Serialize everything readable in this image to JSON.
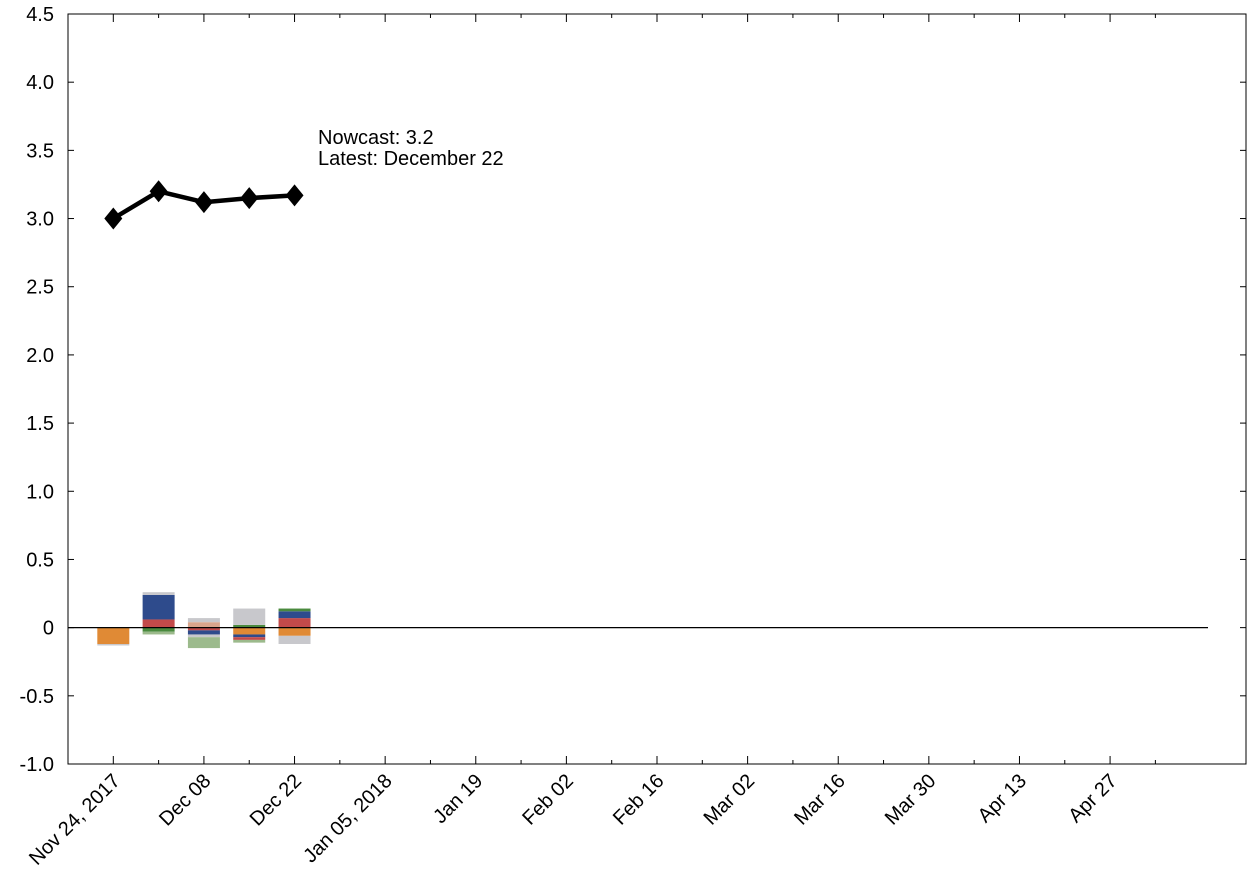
{
  "chart_data": {
    "type": "bar+line",
    "title": "",
    "xlabel": "",
    "ylabel": "",
    "ylim": [
      -1.0,
      4.5
    ],
    "y_ticks": [
      "-1.0",
      "-0.5",
      "0",
      "0.5",
      "1.0",
      "1.5",
      "2.0",
      "2.5",
      "3.0",
      "3.5",
      "4.0",
      "4.5"
    ],
    "y_tick_values": [
      -1.0,
      -0.5,
      0,
      0.5,
      1.0,
      1.5,
      2.0,
      2.5,
      3.0,
      3.5,
      4.0,
      4.5
    ],
    "x_range": [
      "2017-11-17",
      "2018-05-18"
    ],
    "x_ticks": [
      {
        "date": "2017-11-24",
        "label": "Nov 24, 2017"
      },
      {
        "date": "2017-12-08",
        "label": "Dec 08"
      },
      {
        "date": "2017-12-22",
        "label": "Dec 22"
      },
      {
        "date": "2018-01-05",
        "label": "Jan 05, 2018"
      },
      {
        "date": "2018-01-19",
        "label": "Jan 19"
      },
      {
        "date": "2018-02-02",
        "label": "Feb 02"
      },
      {
        "date": "2018-02-16",
        "label": "Feb 16"
      },
      {
        "date": "2018-03-02",
        "label": "Mar 02"
      },
      {
        "date": "2018-03-16",
        "label": "Mar 16"
      },
      {
        "date": "2018-03-30",
        "label": "Mar 30"
      },
      {
        "date": "2018-04-13",
        "label": "Apr 13"
      },
      {
        "date": "2018-04-27",
        "label": "Apr 27"
      }
    ],
    "minor_x_ticks": [
      "2017-12-01",
      "2017-12-15",
      "2017-12-29",
      "2018-01-12",
      "2018-01-26",
      "2018-02-09",
      "2018-02-23",
      "2018-03-09",
      "2018-03-23",
      "2018-04-06",
      "2018-04-20",
      "2018-05-04"
    ],
    "nowcast_line": {
      "color": "#000000",
      "points": [
        {
          "date": "2017-11-24",
          "value": 3.0
        },
        {
          "date": "2017-12-01",
          "value": 3.2
        },
        {
          "date": "2017-12-08",
          "value": 3.12
        },
        {
          "date": "2017-12-15",
          "value": 3.15
        },
        {
          "date": "2017-12-22",
          "value": 3.17
        }
      ]
    },
    "contribution_colors": {
      "orange": "#e08a35",
      "blue": "#2e4b8c",
      "red": "#c24a4a",
      "green": "#4a8a3e",
      "light_green": "#9cba8c",
      "gray": "#c8c8cc",
      "tan": "#d9a58c"
    },
    "contribution_bars": [
      {
        "date": "2017-11-24",
        "segments": [
          {
            "color": "orange",
            "from": 0,
            "to": -0.12
          },
          {
            "color": "gray",
            "from": -0.12,
            "to": -0.13
          }
        ]
      },
      {
        "date": "2017-12-01",
        "segments": [
          {
            "color": "red",
            "from": 0,
            "to": 0.06
          },
          {
            "color": "blue",
            "from": 0.06,
            "to": 0.24
          },
          {
            "color": "gray",
            "from": 0.24,
            "to": 0.26
          },
          {
            "color": "green",
            "from": 0,
            "to": -0.03
          },
          {
            "color": "light_green",
            "from": -0.03,
            "to": -0.05
          }
        ]
      },
      {
        "date": "2017-12-08",
        "segments": [
          {
            "color": "tan",
            "from": 0,
            "to": 0.04
          },
          {
            "color": "gray",
            "from": 0.04,
            "to": 0.07
          },
          {
            "color": "red",
            "from": 0,
            "to": -0.02
          },
          {
            "color": "blue",
            "from": -0.02,
            "to": -0.05
          },
          {
            "color": "gray",
            "from": -0.05,
            "to": -0.07
          },
          {
            "color": "light_green",
            "from": -0.07,
            "to": -0.15
          }
        ]
      },
      {
        "date": "2017-12-15",
        "segments": [
          {
            "color": "green",
            "from": 0,
            "to": 0.02
          },
          {
            "color": "gray",
            "from": 0.02,
            "to": 0.14
          },
          {
            "color": "orange",
            "from": 0,
            "to": -0.05
          },
          {
            "color": "blue",
            "from": -0.05,
            "to": -0.07
          },
          {
            "color": "red",
            "from": -0.07,
            "to": -0.09
          },
          {
            "color": "light_green",
            "from": -0.09,
            "to": -0.11
          }
        ]
      },
      {
        "date": "2017-12-22",
        "segments": [
          {
            "color": "red",
            "from": 0,
            "to": 0.07
          },
          {
            "color": "blue",
            "from": 0.07,
            "to": 0.12
          },
          {
            "color": "green",
            "from": 0.12,
            "to": 0.14
          },
          {
            "color": "orange",
            "from": 0,
            "to": -0.06
          },
          {
            "color": "gray",
            "from": -0.06,
            "to": -0.12
          }
        ]
      }
    ],
    "annotation": {
      "line1": "Nowcast:  3.2",
      "line2": "Latest: December 22"
    }
  }
}
